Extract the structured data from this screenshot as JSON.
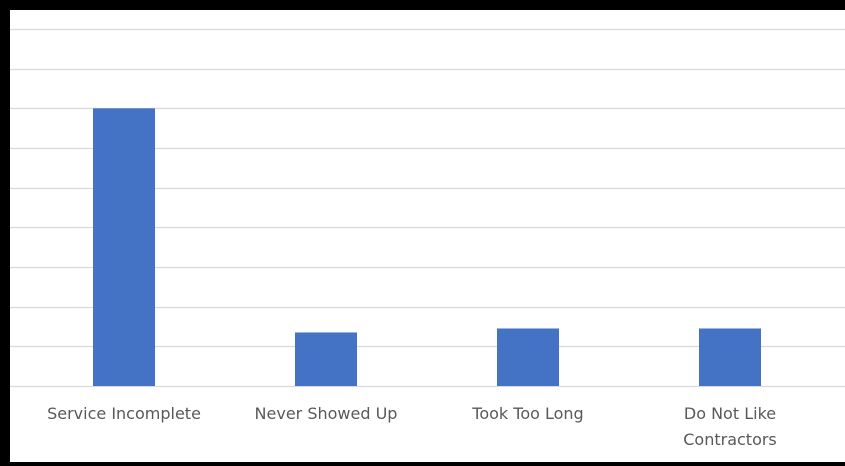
{
  "chart_data": {
    "type": "bar",
    "categories": [
      "Service Incomplete",
      "Never Showed Up",
      "Took Too Long",
      "Do Not Like Contractors"
    ],
    "category_lines": [
      [
        "Service Incomplete"
      ],
      [
        "Never Showed Up"
      ],
      [
        "Took Too Long"
      ],
      [
        "Do Not Like",
        "Contractors"
      ]
    ],
    "values": [
      7,
      1.35,
      1.45,
      1.45
    ],
    "ylim": [
      0,
      9
    ],
    "grid": true,
    "bar_color": "#4472C4",
    "grid_color": "#D9D9D9",
    "legend": "none"
  }
}
